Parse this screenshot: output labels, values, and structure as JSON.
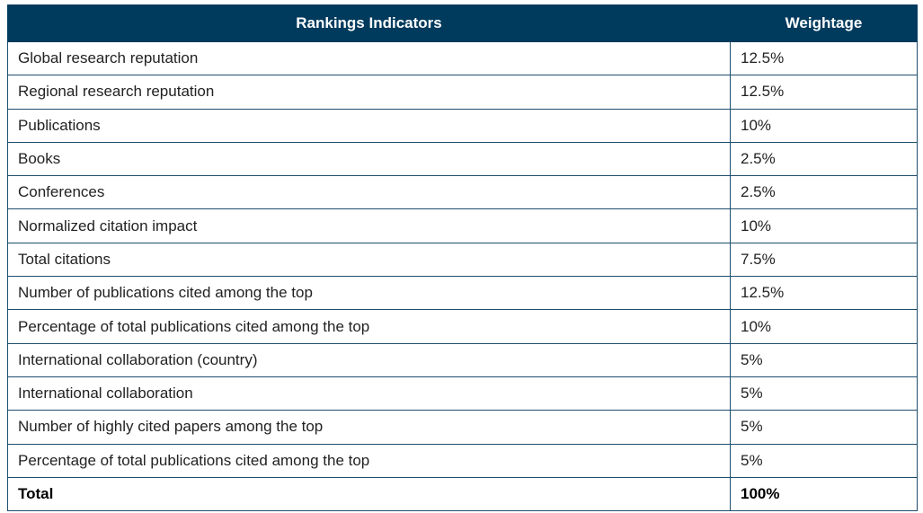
{
  "table": {
    "headers": [
      "Rankings Indicators",
      "Weightage"
    ],
    "rows": [
      {
        "indicator": "Global research reputation",
        "weight": "12.5%"
      },
      {
        "indicator": "Regional research reputation",
        "weight": "12.5%"
      },
      {
        "indicator": "Publications",
        "weight": "10%"
      },
      {
        "indicator": "Books",
        "weight": "2.5%"
      },
      {
        "indicator": "Conferences",
        "weight": "2.5%"
      },
      {
        "indicator": "Normalized citation impact",
        "weight": "10%"
      },
      {
        "indicator": "Total citations",
        "weight": "7.5%"
      },
      {
        "indicator": "Number of publications cited among the top",
        "weight": "12.5%"
      },
      {
        "indicator": "Percentage of total publications cited among the top",
        "weight": "10%"
      },
      {
        "indicator": "International collaboration (country)",
        "weight": "5%"
      },
      {
        "indicator": "International collaboration",
        "weight": "5%"
      },
      {
        "indicator": "Number of highly cited papers among the top",
        "weight": "5%"
      },
      {
        "indicator": "Percentage of total publications cited among the top",
        "weight": "5%"
      }
    ],
    "total": {
      "indicator": "Total",
      "weight": "100%"
    }
  },
  "colors": {
    "header_background": "#003a5d",
    "header_text": "#ffffff",
    "border": "#1f4e6e"
  }
}
